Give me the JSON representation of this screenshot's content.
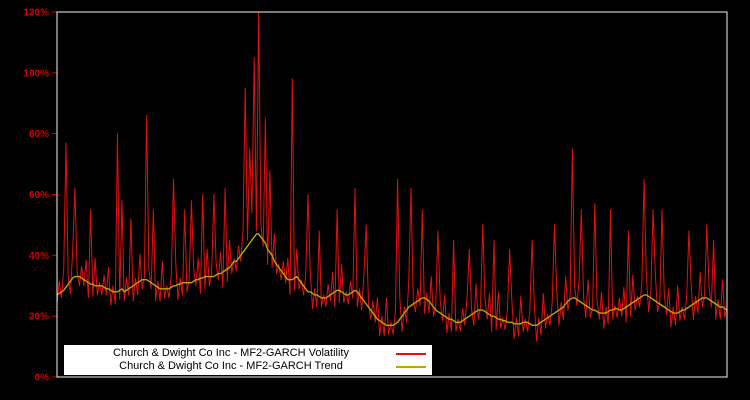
{
  "legend": {
    "items": [
      {
        "label": "Church & Dwight Co Inc - MF2-GARCH Volatility",
        "color": "#e31010"
      },
      {
        "label": "Church & Dwight Co Inc - MF2-GARCH Trend",
        "color": "#b8a800"
      }
    ]
  },
  "chart_data": {
    "type": "line",
    "title": "",
    "xlabel": "",
    "ylabel": "",
    "background": "#000000",
    "frame_color": "#f2f2f2",
    "axis_label_color": "#d40000",
    "ylim": [
      0,
      120
    ],
    "y_ticks": [
      "0%",
      "20%",
      "40%",
      "60%",
      "80%",
      "100%",
      "120%"
    ],
    "grid": false,
    "legend_position": "bottom-left",
    "series": [
      {
        "name": "Church & Dwight Co Inc - MF2-GARCH Volatility",
        "color": "#e31010",
        "width": 1,
        "values": [
          24,
          31.5,
          26,
          35.5,
          77,
          32.5,
          27.5,
          41.5,
          62,
          34,
          30,
          36.5,
          30,
          38.5,
          26,
          55,
          26.5,
          39,
          27,
          31,
          27,
          33.5,
          27,
          36,
          23.5,
          30,
          24,
          80,
          25.5,
          58,
          25,
          32.5,
          27,
          52,
          25,
          32.5,
          27,
          40.5,
          29,
          33,
          86,
          35.5,
          29,
          55,
          25,
          31.5,
          25,
          38,
          26,
          30,
          26,
          33.5,
          65,
          37,
          25.5,
          32.5,
          27,
          55,
          28,
          32,
          58,
          35.5,
          30,
          39,
          27.5,
          60,
          29,
          42,
          30,
          34,
          60,
          37.5,
          32,
          41,
          29.5,
          62,
          31.5,
          45,
          34,
          39,
          35,
          43,
          38,
          48,
          95,
          45,
          75,
          54,
          105,
          48,
          120,
          50,
          43,
          85,
          37,
          68,
          36,
          47,
          34,
          37,
          32,
          38,
          31,
          39,
          27,
          98,
          28.5,
          42,
          29,
          32,
          27,
          33,
          60,
          35,
          22.5,
          29,
          23,
          48,
          23,
          27,
          23,
          30.5,
          25,
          34.5,
          23,
          55,
          24.5,
          37,
          24.5,
          28,
          24,
          31.5,
          26,
          62,
          23,
          29,
          22,
          34,
          50,
          24,
          19,
          25,
          18,
          26,
          13.5,
          20,
          13.5,
          26,
          14,
          18,
          14,
          21.5,
          65,
          26,
          15,
          23,
          18,
          32,
          62,
          25,
          21.5,
          29,
          23.5,
          55,
          21,
          27.5,
          21,
          33,
          20,
          23,
          48,
          25,
          18.5,
          27,
          14.5,
          21,
          15,
          45,
          15,
          19,
          15,
          22.5,
          17,
          26.5,
          42,
          22.5,
          17,
          30.5,
          19,
          23,
          50,
          25.5,
          19,
          27.5,
          15,
          45,
          15.5,
          28,
          16,
          19.5,
          15.5,
          22,
          42,
          25,
          12.5,
          19.5,
          13.5,
          26.5,
          15,
          19,
          15,
          21.5,
          45,
          24,
          12,
          19.5,
          14,
          27.5,
          16,
          20.5,
          17,
          24.5,
          50,
          28.5,
          17,
          24.5,
          19,
          33,
          22,
          26.5,
          75,
          30,
          23.5,
          32,
          55,
          26,
          19.5,
          32,
          19.5,
          23,
          57,
          25.5,
          19,
          28,
          16,
          23,
          17.5,
          55,
          19,
          23.5,
          19.5,
          26,
          20,
          29.5,
          18,
          48,
          20,
          33.5,
          22,
          26.5,
          23,
          30.5,
          65,
          34,
          21.5,
          28,
          55,
          34,
          21.5,
          25,
          55,
          27,
          20.5,
          29,
          16.5,
          23,
          17,
          30,
          18.5,
          23,
          19,
          26.5,
          48,
          30.5,
          19,
          26.5,
          21,
          34.5,
          23,
          27,
          50,
          29.5,
          23,
          45,
          19,
          25.5,
          19,
          32,
          19.5,
          23
        ]
      },
      {
        "name": "Church & Dwight Co Inc - MF2-GARCH Trend",
        "color": "#b8a800",
        "width": 1.4,
        "values": [
          27,
          27.5,
          28,
          28.5,
          29.5,
          30.5,
          31.5,
          32.5,
          33,
          33,
          33,
          32.5,
          32,
          31.5,
          31,
          30.5,
          30.5,
          30,
          30,
          30,
          30,
          29.5,
          29,
          29,
          28.5,
          28,
          28,
          28,
          28.5,
          29,
          28,
          28.5,
          29,
          29.5,
          30,
          30.5,
          31,
          31.5,
          32,
          32,
          32,
          31.5,
          31,
          30.5,
          30,
          29.5,
          29,
          29,
          29,
          29,
          29,
          29.5,
          30,
          30,
          30.5,
          30.5,
          31,
          31,
          31,
          31,
          31,
          31.5,
          32,
          32,
          32.5,
          32.5,
          33,
          33,
          33,
          33,
          33,
          33.5,
          34,
          34,
          34.5,
          35,
          35.5,
          36,
          37,
          38,
          38,
          39,
          40,
          41,
          42,
          43,
          44,
          45,
          46,
          47,
          47,
          46,
          45,
          44,
          42,
          41,
          40,
          38,
          37,
          36,
          35,
          34,
          33,
          32,
          32,
          32,
          32.5,
          33,
          32,
          31,
          30,
          29,
          28,
          28,
          27.5,
          27,
          27,
          26.5,
          26,
          26,
          26,
          26.5,
          27,
          27.5,
          28,
          28.5,
          28.5,
          28,
          27.5,
          27,
          27,
          27.5,
          28,
          28.5,
          28,
          27,
          26,
          25,
          24,
          23,
          22,
          21,
          20,
          19,
          18.5,
          18,
          17.5,
          17,
          17,
          17,
          17,
          17.5,
          18,
          19,
          20,
          21,
          22,
          23,
          23.5,
          24,
          24.5,
          25,
          25.5,
          26,
          26,
          25.5,
          25,
          24,
          23,
          22,
          21.5,
          21,
          20.5,
          20,
          19.5,
          19,
          19,
          18.5,
          18,
          18,
          18,
          18.5,
          19,
          19.5,
          20,
          20.5,
          21,
          21.5,
          22,
          22,
          22,
          21.5,
          21,
          20.5,
          20,
          20,
          19.5,
          19,
          19,
          18.5,
          18.5,
          18,
          18,
          18,
          17.5,
          17.5,
          17.5,
          17.5,
          18,
          18,
          18,
          17.5,
          17,
          17,
          17,
          17.5,
          18,
          18.5,
          19,
          19.5,
          20,
          20.5,
          21,
          21.5,
          22,
          22.5,
          23,
          24,
          25,
          25.5,
          26,
          26,
          25.5,
          25,
          24.5,
          24,
          23.5,
          23,
          22.5,
          22,
          22,
          21.5,
          21,
          21,
          21,
          21,
          21.5,
          22,
          22,
          22.5,
          22.5,
          22,
          22,
          22.5,
          23,
          23.5,
          24,
          24.5,
          25,
          25.5,
          26,
          26.5,
          27,
          27,
          26.5,
          26,
          25.5,
          25,
          24.5,
          24,
          23.5,
          23,
          22.5,
          22,
          21.5,
          21,
          21,
          21,
          21.5,
          22,
          22,
          22.5,
          23,
          23.5,
          24,
          24.5,
          25,
          25.5,
          26,
          26,
          26,
          25.5,
          25,
          24.5,
          24,
          23.5,
          23,
          23,
          22.5,
          22
        ]
      }
    ]
  }
}
